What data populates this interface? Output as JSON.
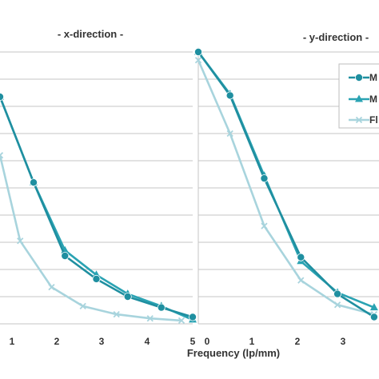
{
  "chart_data": [
    {
      "type": "line",
      "title": "- x-direction -",
      "xlabel": "",
      "ylabel": "",
      "x_ticks": [
        "1",
        "2",
        "3",
        "4",
        "5"
      ],
      "xlim": [
        0.7,
        5
      ],
      "ylim": [
        0,
        1.0
      ],
      "grid": true,
      "series": [
        {
          "color": "#1f8fa0",
          "marker": "circle",
          "x": [
            0.7,
            1.45,
            2.15,
            2.85,
            3.55,
            4.3,
            5.0
          ],
          "y": [
            0.835,
            0.52,
            0.25,
            0.165,
            0.1,
            0.06,
            0.025
          ]
        },
        {
          "color": "#2aa3b3",
          "marker": "triangle",
          "x": [
            0.7,
            1.45,
            2.15,
            2.85,
            3.55,
            4.3,
            5.0
          ],
          "y": [
            0.835,
            0.52,
            0.27,
            0.18,
            0.11,
            0.065,
            0.015
          ]
        },
        {
          "color": "#a8d4dd",
          "marker": "cross",
          "x": [
            0.7,
            1.15,
            1.85,
            2.55,
            3.3,
            4.05,
            4.75
          ],
          "y": [
            0.62,
            0.305,
            0.135,
            0.065,
            0.035,
            0.02,
            0.012
          ]
        }
      ]
    },
    {
      "type": "line",
      "title": "- y-direction -",
      "xlabel": "Frequency (lp/mm)",
      "ylabel": "",
      "x_ticks": [
        "0",
        "1",
        "2",
        "3"
      ],
      "xlim": [
        0,
        3.7
      ],
      "ylim": [
        0,
        1.0
      ],
      "grid": true,
      "legend": "right",
      "series": [
        {
          "name": "M",
          "color": "#1f8fa0",
          "marker": "circle",
          "x": [
            0,
            0.65,
            1.35,
            2.1,
            2.85,
            3.6
          ],
          "y": [
            1.0,
            0.84,
            0.535,
            0.245,
            0.11,
            0.025
          ]
        },
        {
          "name": "M",
          "color": "#2aa3b3",
          "marker": "triangle",
          "x": [
            0,
            0.65,
            1.35,
            2.1,
            2.85,
            3.6
          ],
          "y": [
            1.0,
            0.845,
            0.545,
            0.23,
            0.115,
            0.06
          ]
        },
        {
          "name": "Fl",
          "color": "#a8d4dd",
          "marker": "cross",
          "x": [
            0,
            0.65,
            1.35,
            2.1,
            2.85,
            3.6
          ],
          "y": [
            0.97,
            0.7,
            0.36,
            0.16,
            0.07,
            0.035
          ]
        }
      ]
    }
  ]
}
